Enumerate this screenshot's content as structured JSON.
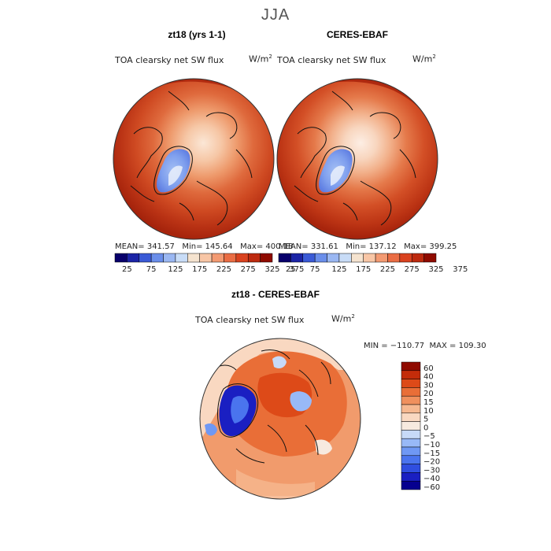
{
  "page": {
    "season": "JJA"
  },
  "panels": [
    {
      "title": "zt18 (yrs 1-1)",
      "variable": "TOA clearsky net SW flux",
      "unit_base": "W/m",
      "unit_exp": "2",
      "stats": "MEAN= 341.57   Min= 145.64   Max= 400.18"
    },
    {
      "title": "CERES-EBAF",
      "variable": "TOA clearsky net SW flux",
      "unit_base": "W/m",
      "unit_exp": "2",
      "stats": "MEAN= 331.61   Min= 137.12   Max= 399.25"
    },
    {
      "title": "zt18 - CERES-EBAF",
      "variable": "TOA clearsky net SW flux",
      "unit_base": "W/m",
      "unit_exp": "2",
      "stats": "MIN = −110.77  MAX = 109.30"
    }
  ],
  "colors": {
    "abs_scale": [
      "#08006b",
      "#1b24a6",
      "#3a5ad6",
      "#6a8eea",
      "#9ab7f2",
      "#c8dcf7",
      "#f5e3cf",
      "#f8c6a6",
      "#f39a72",
      "#ea6d44",
      "#d9421f",
      "#bd2a0f",
      "#8f0b00"
    ],
    "diff_scale": [
      "#06008f",
      "#1a1fc2",
      "#2f4ee0",
      "#4a74ee",
      "#6f98f4",
      "#98b9f7",
      "#c7daf8",
      "#f7eadf",
      "#f9d8c1",
      "#f6b890",
      "#f0905d",
      "#e96e37",
      "#dd4a18",
      "#c32c0a",
      "#8f0a00"
    ]
  },
  "chart_data": [
    {
      "type": "heatmap",
      "title": "zt18 (yrs 1-1)",
      "subtitle": "TOA clearsky net SW flux (W/m2)",
      "projection": "north polar stereographic",
      "stats": {
        "mean": 341.57,
        "min": 145.64,
        "max": 400.18
      },
      "colorbar_ticks": [
        "25",
        "75",
        "125",
        "175",
        "225",
        "275",
        "325",
        "375"
      ]
    },
    {
      "type": "heatmap",
      "title": "CERES-EBAF",
      "subtitle": "TOA clearsky net SW flux (W/m2)",
      "projection": "north polar stereographic",
      "stats": {
        "mean": 331.61,
        "min": 137.12,
        "max": 399.25
      },
      "colorbar_ticks": [
        "25",
        "75",
        "125",
        "175",
        "225",
        "275",
        "325",
        "375"
      ]
    },
    {
      "type": "heatmap",
      "title": "zt18 - CERES-EBAF",
      "subtitle": "TOA clearsky net SW flux (W/m2)",
      "projection": "north polar stereographic",
      "stats": {
        "min": -110.77,
        "max": 109.3
      },
      "colorbar_ticks": [
        "60",
        "40",
        "30",
        "20",
        "15",
        "10",
        "5",
        "0",
        "−5",
        "−10",
        "−15",
        "−20",
        "−30",
        "−40",
        "−60"
      ]
    }
  ]
}
